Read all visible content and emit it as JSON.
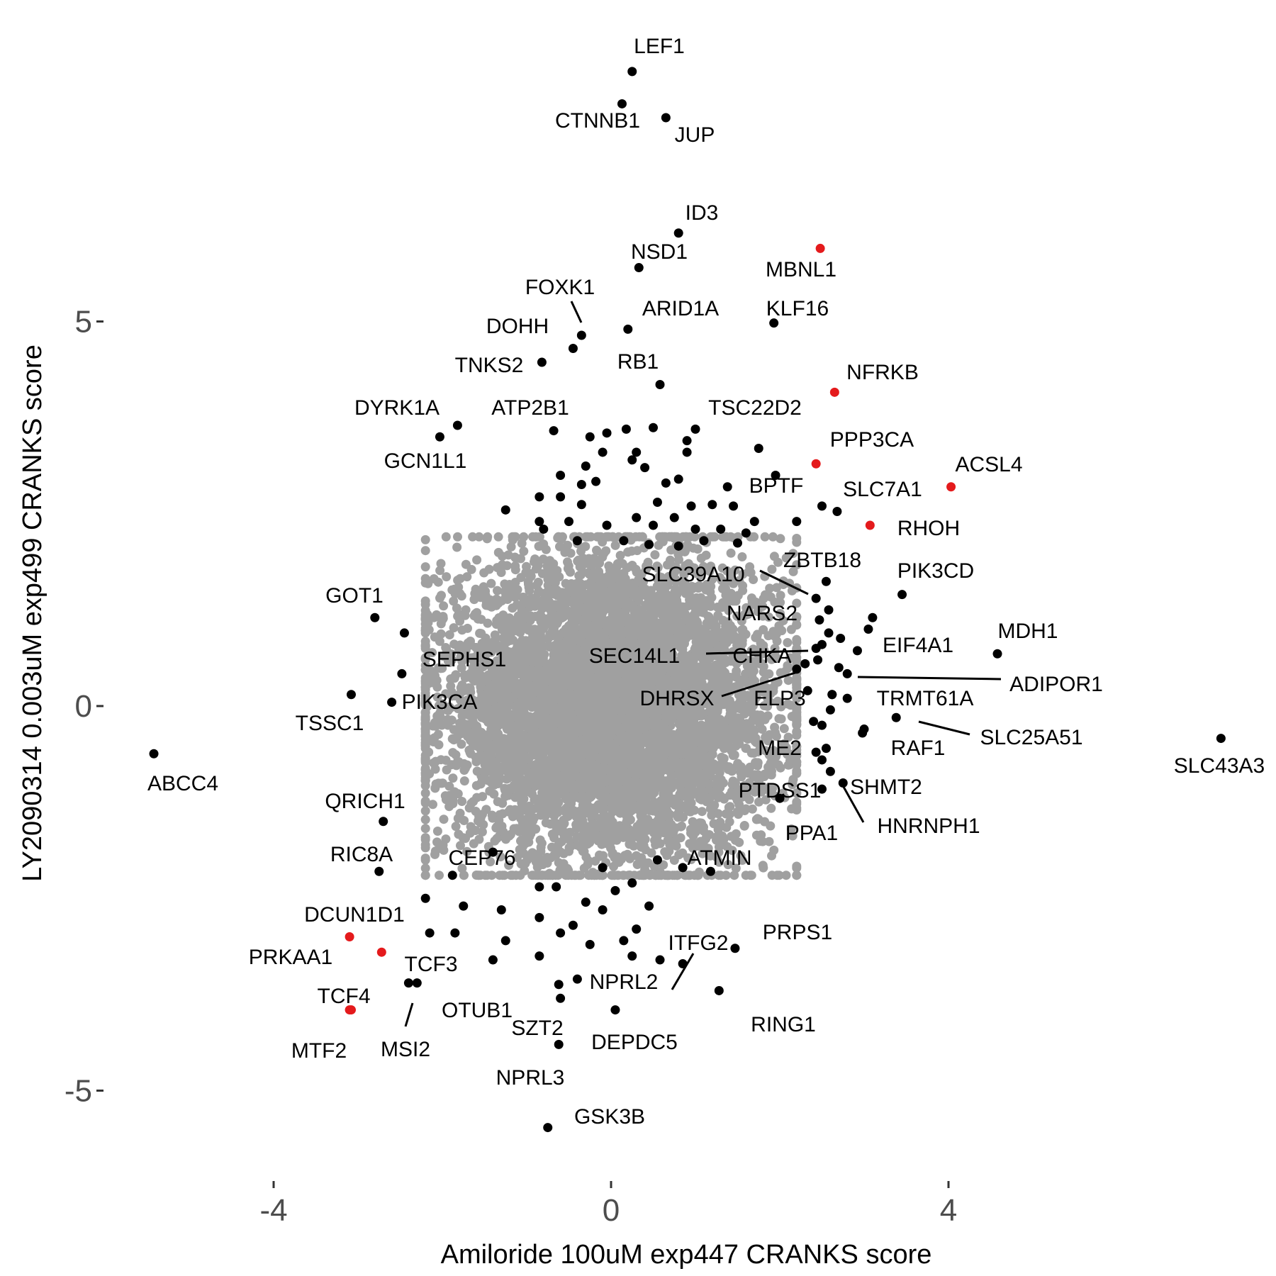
{
  "chart_data": {
    "type": "scatter",
    "xlabel": "Amiloride 100uM exp447 CRANKS score",
    "ylabel": "LY2090314 0.003uM exp499 CRANKS score",
    "xlim": [
      -5.8,
      7.5
    ],
    "ylim": [
      -6.0,
      8.2
    ],
    "x_ticks": [
      -4,
      0,
      4
    ],
    "y_ticks": [
      -5,
      0,
      5
    ],
    "grid": false,
    "legend": "none",
    "colors": {
      "background_points": "#a0a0a0",
      "hit_points": "#000000",
      "highlight_points": "#e41a1c"
    },
    "cloud": {
      "n": 6500,
      "center": [
        0,
        0
      ],
      "sd": [
        1.0,
        1.0
      ],
      "range": [
        [
          -2.2,
          2.2
        ],
        [
          -2.2,
          2.2
        ]
      ]
    },
    "labeled_points": [
      {
        "gene": "LEF1",
        "x": 0.25,
        "y": 8.25,
        "color": "black"
      },
      {
        "gene": "CTNNB1",
        "x": 0.13,
        "y": 7.83,
        "color": "black"
      },
      {
        "gene": "JUP",
        "x": 0.65,
        "y": 7.65,
        "color": "black"
      },
      {
        "gene": "ID3",
        "x": 0.8,
        "y": 6.15,
        "color": "black"
      },
      {
        "gene": "NSD1",
        "x": 0.33,
        "y": 5.7,
        "color": "black"
      },
      {
        "gene": "MBNL1",
        "x": 2.48,
        "y": 5.95,
        "color": "red"
      },
      {
        "gene": "FOXK1",
        "x": -0.35,
        "y": 4.82,
        "color": "black"
      },
      {
        "gene": "ARID1A",
        "x": 0.2,
        "y": 4.9,
        "color": "black"
      },
      {
        "gene": "KLF16",
        "x": 1.93,
        "y": 4.98,
        "color": "black"
      },
      {
        "gene": "DOHH",
        "x": -0.45,
        "y": 4.65,
        "color": "black"
      },
      {
        "gene": "TNKS2",
        "x": -0.82,
        "y": 4.47,
        "color": "black"
      },
      {
        "gene": "RB1",
        "x": 0.58,
        "y": 4.18,
        "color": "black"
      },
      {
        "gene": "NFRKB",
        "x": 2.65,
        "y": 4.08,
        "color": "red"
      },
      {
        "gene": "DYRK1A",
        "x": -1.82,
        "y": 3.65,
        "color": "black"
      },
      {
        "gene": "GCN1L1",
        "x": -2.03,
        "y": 3.5,
        "color": "black"
      },
      {
        "gene": "ATP2B1",
        "x": -0.68,
        "y": 3.58,
        "color": "black"
      },
      {
        "gene": "TSC22D2",
        "x": 1.0,
        "y": 3.6,
        "color": "black"
      },
      {
        "gene": "PPP3CA",
        "x": 2.43,
        "y": 3.15,
        "color": "red"
      },
      {
        "gene": "ACSL4",
        "x": 4.03,
        "y": 2.85,
        "color": "red"
      },
      {
        "gene": "BPTF",
        "x": 1.38,
        "y": 2.85,
        "color": "black"
      },
      {
        "gene": "SLC7A1",
        "x": 2.68,
        "y": 2.53,
        "color": "black"
      },
      {
        "gene": "RHOH",
        "x": 3.07,
        "y": 2.35,
        "color": "red"
      },
      {
        "gene": "ZBTB18",
        "x": 2.55,
        "y": 1.62,
        "color": "black"
      },
      {
        "gene": "PIK3CD",
        "x": 3.45,
        "y": 1.45,
        "color": "black"
      },
      {
        "gene": "SLC39A10",
        "x": 2.43,
        "y": 1.4,
        "color": "black"
      },
      {
        "gene": "NARS2",
        "x": 2.47,
        "y": 1.12,
        "color": "black"
      },
      {
        "gene": "GOT1",
        "x": -2.8,
        "y": 1.15,
        "color": "black"
      },
      {
        "gene": "EIF4A1",
        "x": 2.92,
        "y": 0.72,
        "color": "black"
      },
      {
        "gene": "MDH1",
        "x": 4.58,
        "y": 0.68,
        "color": "black"
      },
      {
        "gene": "SEC14L1",
        "x": 2.43,
        "y": 0.75,
        "color": "black"
      },
      {
        "gene": "CHKA",
        "x": 2.3,
        "y": 0.55,
        "color": "black"
      },
      {
        "gene": "SEPHS1",
        "x": -2.48,
        "y": 0.42,
        "color": "black"
      },
      {
        "gene": "ADIPOR1",
        "x": 2.8,
        "y": 0.42,
        "color": "black"
      },
      {
        "gene": "DHRSX",
        "x": 2.2,
        "y": 0.48,
        "color": "black"
      },
      {
        "gene": "ELP3",
        "x": 2.33,
        "y": 0.2,
        "color": "black"
      },
      {
        "gene": "TRMT61A",
        "x": 2.62,
        "y": 0.15,
        "color": "black"
      },
      {
        "gene": "TSSC1",
        "x": -3.08,
        "y": 0.15,
        "color": "black"
      },
      {
        "gene": "PIK3CA",
        "x": -2.6,
        "y": 0.05,
        "color": "black"
      },
      {
        "gene": "SLC25A51",
        "x": 3.38,
        "y": -0.15,
        "color": "black"
      },
      {
        "gene": "RAF1",
        "x": 2.98,
        "y": -0.35,
        "color": "black"
      },
      {
        "gene": "SLC43A3",
        "x": 7.23,
        "y": -0.42,
        "color": "black"
      },
      {
        "gene": "ABCC4",
        "x": -5.42,
        "y": -0.62,
        "color": "black"
      },
      {
        "gene": "ME2",
        "x": 2.43,
        "y": -0.6,
        "color": "black"
      },
      {
        "gene": "SHMT2",
        "x": 2.6,
        "y": -0.85,
        "color": "black"
      },
      {
        "gene": "PTDSS1",
        "x": 2.5,
        "y": -1.08,
        "color": "black"
      },
      {
        "gene": "HNRNPH1",
        "x": 2.75,
        "y": -1.0,
        "color": "black"
      },
      {
        "gene": "QRICH1",
        "x": -2.7,
        "y": -1.5,
        "color": "black"
      },
      {
        "gene": "PPA1",
        "x": 2.0,
        "y": -1.2,
        "color": "black"
      },
      {
        "gene": "ATMIN",
        "x": 1.18,
        "y": -2.15,
        "color": "black"
      },
      {
        "gene": "RIC8A",
        "x": -2.75,
        "y": -2.15,
        "color": "black"
      },
      {
        "gene": "CEP76",
        "x": -1.88,
        "y": -2.2,
        "color": "black"
      },
      {
        "gene": "DCUN1D1",
        "x": -2.2,
        "y": -2.5,
        "color": "black"
      },
      {
        "gene": "PRKAA1",
        "x": -3.1,
        "y": -3.0,
        "color": "red"
      },
      {
        "gene": "ITFG2",
        "x": 0.58,
        "y": -3.3,
        "color": "black"
      },
      {
        "gene": "PRPS1",
        "x": 1.47,
        "y": -3.15,
        "color": "black"
      },
      {
        "gene": "TCF3",
        "x": -2.72,
        "y": -3.2,
        "color": "red"
      },
      {
        "gene": "NPRL2",
        "x": -0.4,
        "y": -3.55,
        "color": "black"
      },
      {
        "gene": "OTUB1",
        "x": -2.3,
        "y": -3.6,
        "color": "black"
      },
      {
        "gene": "MSI2",
        "x": -2.4,
        "y": -3.6,
        "color": "black"
      },
      {
        "gene": "TCF4",
        "x": -3.08,
        "y": -3.95,
        "color": "red"
      },
      {
        "gene": "MTF2",
        "x": -3.1,
        "y": -3.95,
        "color": "red"
      },
      {
        "gene": "SZT2",
        "x": -0.62,
        "y": -3.62,
        "color": "black"
      },
      {
        "gene": "DEPDC5",
        "x": 0.05,
        "y": -3.95,
        "color": "black"
      },
      {
        "gene": "RING1",
        "x": 1.28,
        "y": -3.7,
        "color": "black"
      },
      {
        "gene": "NPRL3",
        "x": -0.62,
        "y": -4.4,
        "color": "black"
      },
      {
        "gene": "GSK3B",
        "x": -0.75,
        "y": -5.48,
        "color": "black"
      }
    ],
    "other_hits": [
      [
        -0.25,
        3.5
      ],
      [
        -0.05,
        3.55
      ],
      [
        0.18,
        3.6
      ],
      [
        0.5,
        3.62
      ],
      [
        0.9,
        3.45
      ],
      [
        -0.6,
        3.0
      ],
      [
        -0.35,
        2.88
      ],
      [
        -0.18,
        2.92
      ],
      [
        0.25,
        3.2
      ],
      [
        0.4,
        3.1
      ],
      [
        0.65,
        2.9
      ],
      [
        0.8,
        2.95
      ],
      [
        -0.85,
        2.72
      ],
      [
        -0.6,
        2.72
      ],
      [
        -0.35,
        2.62
      ],
      [
        0.55,
        2.65
      ],
      [
        0.95,
        2.6
      ],
      [
        1.2,
        2.62
      ],
      [
        -1.25,
        2.55
      ],
      [
        -0.85,
        2.4
      ],
      [
        -0.5,
        2.4
      ],
      [
        -0.05,
        2.35
      ],
      [
        0.3,
        2.45
      ],
      [
        0.5,
        2.35
      ],
      [
        0.75,
        2.45
      ],
      [
        1.0,
        2.3
      ],
      [
        1.3,
        2.3
      ],
      [
        -0.8,
        2.3
      ],
      [
        -0.4,
        2.15
      ],
      [
        0.15,
        2.15
      ],
      [
        0.45,
        2.1
      ],
      [
        0.8,
        2.08
      ],
      [
        1.1,
        2.15
      ],
      [
        1.5,
        2.12
      ],
      [
        1.6,
        2.25
      ],
      [
        1.7,
        2.4
      ],
      [
        2.2,
        2.4
      ],
      [
        2.5,
        2.6
      ],
      [
        1.75,
        3.35
      ],
      [
        1.95,
        3.0
      ],
      [
        -0.3,
        3.12
      ],
      [
        -0.1,
        3.3
      ],
      [
        0.3,
        3.3
      ],
      [
        0.9,
        3.3
      ],
      [
        1.45,
        2.6
      ],
      [
        2.58,
        1.25
      ],
      [
        2.58,
        0.95
      ],
      [
        2.72,
        0.88
      ],
      [
        2.45,
        0.6
      ],
      [
        2.7,
        0.5
      ],
      [
        2.5,
        0.8
      ],
      [
        3.1,
        1.15
      ],
      [
        3.05,
        1.0
      ],
      [
        2.62,
        0.15
      ],
      [
        2.8,
        0.1
      ],
      [
        2.4,
        -0.2
      ],
      [
        2.6,
        -0.05
      ],
      [
        2.5,
        -0.25
      ],
      [
        2.55,
        -0.55
      ],
      [
        3.0,
        -0.3
      ],
      [
        2.5,
        -0.7
      ],
      [
        -2.45,
        0.95
      ],
      [
        -1.4,
        -1.9
      ],
      [
        -0.1,
        -2.1
      ],
      [
        0.25,
        -2.3
      ],
      [
        0.55,
        -2.0
      ],
      [
        0.85,
        -2.1
      ],
      [
        -0.65,
        -2.35
      ],
      [
        -0.3,
        -2.55
      ],
      [
        0.05,
        -2.4
      ],
      [
        -0.85,
        -2.75
      ],
      [
        -0.45,
        -2.85
      ],
      [
        -0.1,
        -2.65
      ],
      [
        -1.3,
        -2.65
      ],
      [
        -1.75,
        -2.6
      ],
      [
        0.3,
        -2.9
      ],
      [
        0.45,
        -2.6
      ],
      [
        -0.6,
        -2.95
      ],
      [
        -0.25,
        -3.1
      ],
      [
        0.15,
        -3.05
      ],
      [
        -1.25,
        -3.05
      ],
      [
        -1.85,
        -2.95
      ],
      [
        -0.85,
        -3.25
      ],
      [
        -1.4,
        -3.3
      ],
      [
        -2.15,
        -2.95
      ],
      [
        0.25,
        -3.25
      ],
      [
        0.85,
        -3.35
      ],
      [
        -0.6,
        -3.8
      ],
      [
        -0.85,
        -2.35
      ]
    ]
  }
}
